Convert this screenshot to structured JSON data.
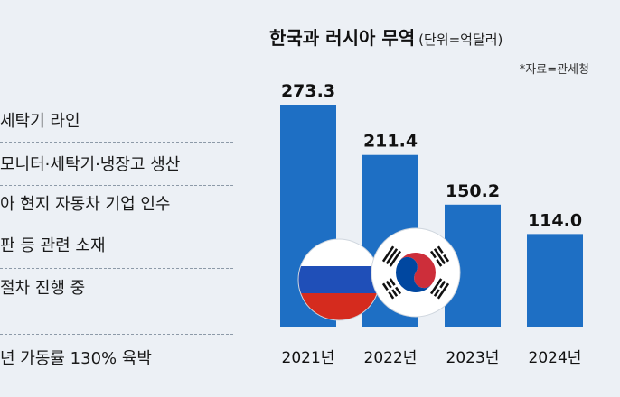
{
  "left_list": {
    "items": [
      "세탁기 라인",
      "모니터·세탁기·냉장고 생산",
      "아 현지 자동차 기업 인수",
      "판 등 관련 소재",
      "절차 진행 중",
      "년 가동률 130% 육박"
    ]
  },
  "chart_data": {
    "type": "bar",
    "title": "한국과 러시아 무역",
    "unit": "(단위=억달러)",
    "source": "*자료=관세청",
    "categories": [
      "2021년",
      "2022년",
      "2023년",
      "2024년"
    ],
    "values": [
      273.3,
      211.4,
      150.2,
      114.0
    ],
    "value_labels": [
      "273.3",
      "211.4",
      "150.2",
      "114.0"
    ],
    "ylim": [
      0,
      300
    ],
    "bar_color": "#1e6fc4",
    "flags": [
      "russia-flag",
      "korea-flag"
    ]
  }
}
